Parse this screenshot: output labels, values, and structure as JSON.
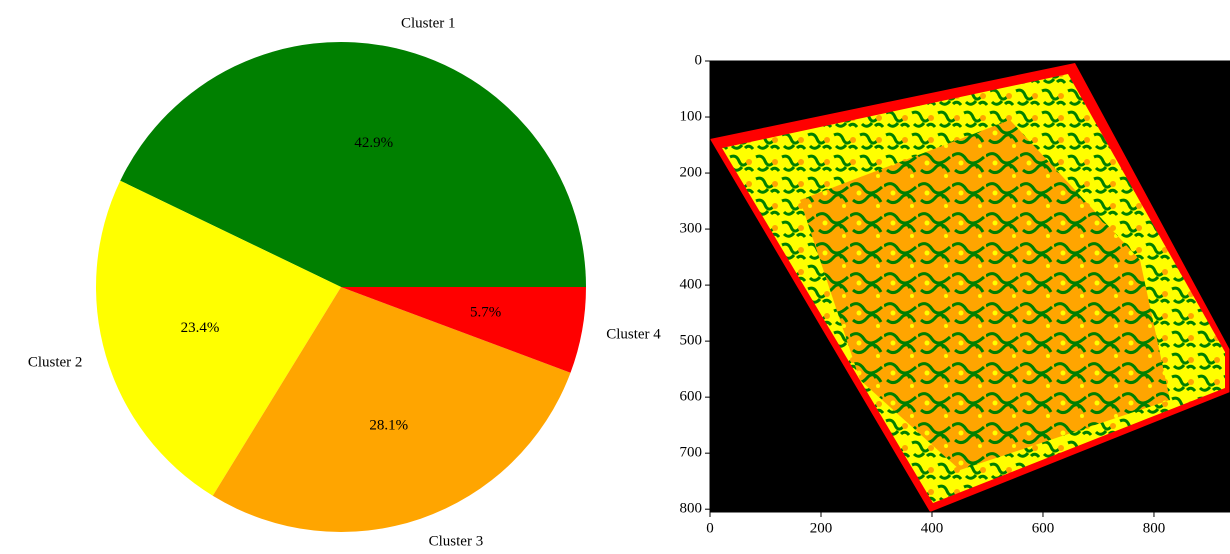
{
  "chart_data": [
    {
      "type": "pie",
      "categories": [
        "Cluster 1",
        "Cluster 2",
        "Cluster 3",
        "Cluster 4"
      ],
      "values": [
        42.9,
        23.4,
        28.1,
        5.7
      ],
      "value_labels": [
        "42.9%",
        "23.4%",
        "28.1%",
        "5.7%"
      ],
      "colors": [
        "#008000",
        "#ffff00",
        "#ffa500",
        "#ff0000"
      ],
      "start_angle": 0,
      "counterclock": true
    },
    {
      "type": "image",
      "xlim": [
        0,
        937
      ],
      "ylim": [
        805,
        0
      ],
      "xticks": [
        0,
        200,
        400,
        600,
        800
      ],
      "yticks": [
        0,
        100,
        200,
        300,
        400,
        500,
        600,
        700,
        800
      ]
    }
  ]
}
